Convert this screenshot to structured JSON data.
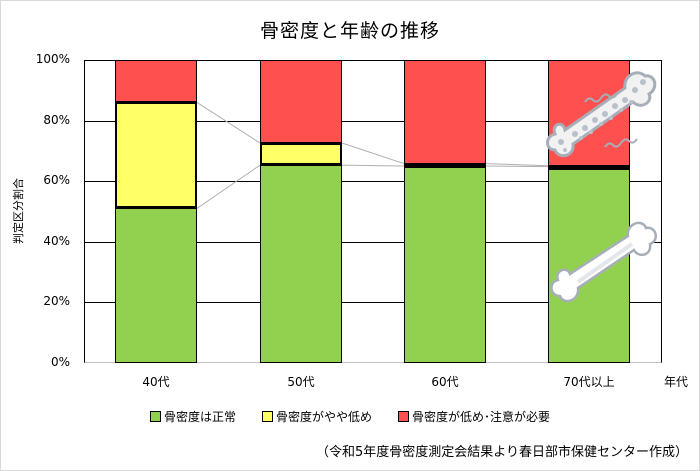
{
  "chart": {
    "title": "骨密度と年齢の推移",
    "ylabel": "判定区分割合",
    "xunit": "年代",
    "yticks": [
      "100%",
      "80%",
      "60%",
      "40%",
      "20%",
      "0%"
    ],
    "source_note": "（令和5年度骨密度測定会結果より春日部市保健センター作成）",
    "colors": {
      "normal": "#92d050",
      "slightly_low": "#ffff66",
      "low": "#ff5050"
    },
    "legend": [
      {
        "label": "骨密度は正常",
        "color": "#92d050"
      },
      {
        "label": "骨密度がやや低め",
        "color": "#ffff66"
      },
      {
        "label": "骨密度が低め･注意が必要",
        "color": "#ff5050"
      }
    ]
  },
  "chart_data": {
    "type": "bar",
    "stacked": true,
    "percent": true,
    "title": "骨密度と年齢の推移",
    "xlabel": "年代",
    "ylabel": "判定区分割合",
    "ylim": [
      0,
      100
    ],
    "yticks": [
      0,
      20,
      40,
      60,
      80,
      100
    ],
    "grid": true,
    "legend_position": "bottom",
    "categories": [
      "40代",
      "50代",
      "60代",
      "70代以上"
    ],
    "series": [
      {
        "name": "骨密度は正常",
        "color": "#92d050",
        "values": [
          51,
          65.3,
          65.0,
          64.8
        ]
      },
      {
        "name": "骨密度がやや低め",
        "color": "#ffff66",
        "values": [
          35,
          7.3,
          0.8,
          0.3
        ]
      },
      {
        "name": "骨密度が低め･注意が必要",
        "color": "#ff5050",
        "values": [
          14,
          27.4,
          34.2,
          34.9
        ]
      }
    ],
    "annotations": [
      "（令和5年度骨密度測定会結果より春日部市保健センター作成）"
    ]
  }
}
